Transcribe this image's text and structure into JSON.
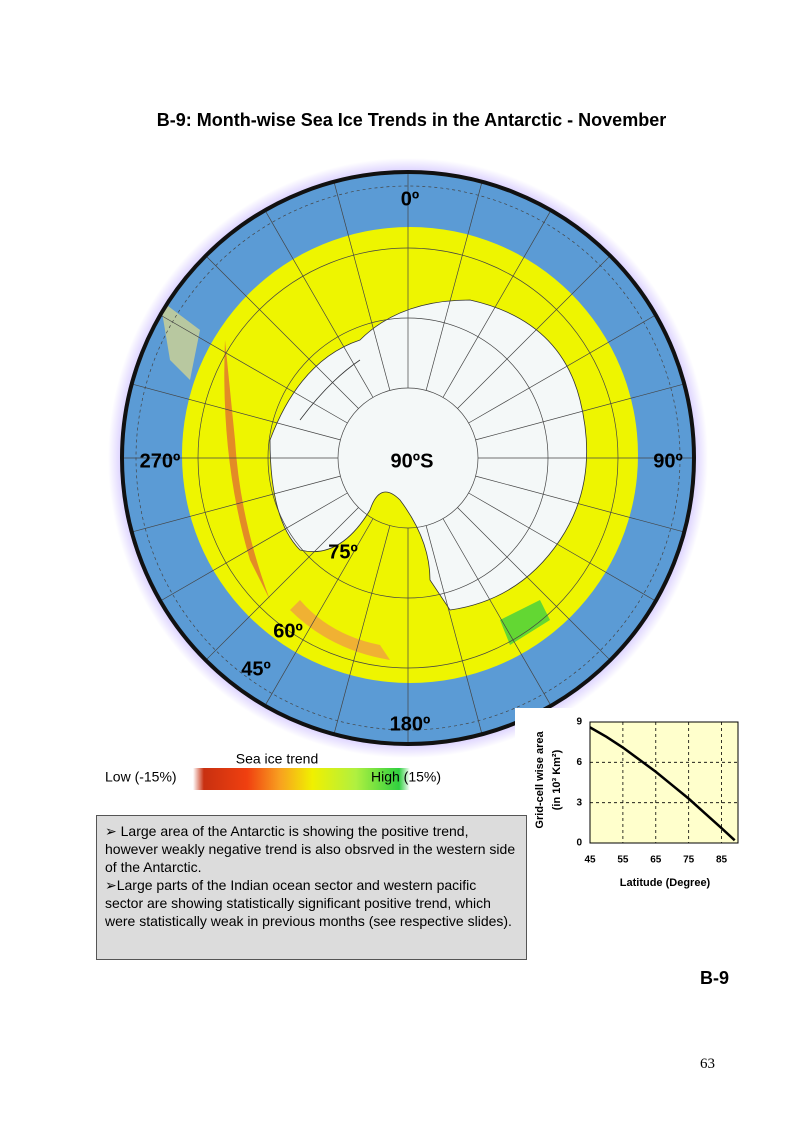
{
  "header": {
    "title": "B-9: Month-wise Sea Ice Trends in the Antarctic - November"
  },
  "map": {
    "labels": [
      "0º",
      "270º",
      "90ºS",
      "90º",
      "75º",
      "60º",
      "45º",
      "180º"
    ]
  },
  "legend": {
    "title": "Sea ice trend",
    "low": "Low (-15%)",
    "high": "High (15%)"
  },
  "note": {
    "paragraphs": [
      "➢ Large area of the Antarctic is showing the positive trend, however weakly negative trend is also obsrved in the western side of the Antarctic.",
      "➢Large parts of the Indian ocean sector and western pacific sector are showing statistically significant positive trend, which were statistically weak in previous months (see respective slides)."
    ]
  },
  "footer": {
    "code": "B-9",
    "page": "63"
  },
  "chart_data": {
    "type": "line",
    "ylabel": "Grid-cell wise area",
    "ylabel2": "(in 10³ Km²)",
    "xlabel": "Latitude (Degree)",
    "x": [
      45,
      50,
      55,
      60,
      65,
      70,
      75,
      80,
      85,
      89
    ],
    "values": [
      8.6,
      7.9,
      7.1,
      6.2,
      5.3,
      4.3,
      3.3,
      2.2,
      1.1,
      0.2
    ],
    "color": "#000000",
    "background": "#ffffcc",
    "xlim": [
      45,
      90
    ],
    "ylim": [
      0,
      9
    ],
    "xticks": [
      45,
      55,
      65,
      75,
      85
    ],
    "yticks": [
      0,
      3,
      6,
      9
    ],
    "grid": true
  }
}
